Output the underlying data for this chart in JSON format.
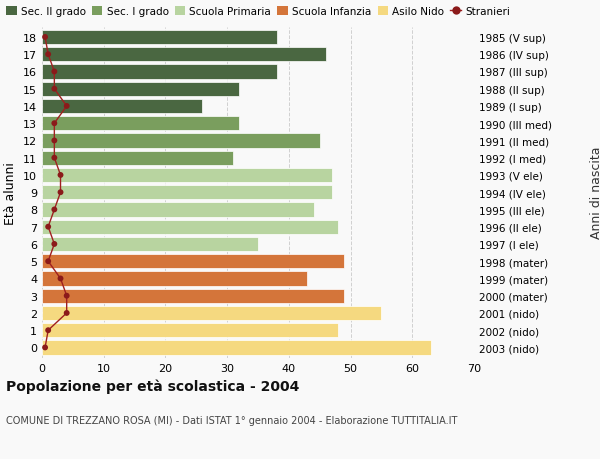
{
  "ages": [
    18,
    17,
    16,
    15,
    14,
    13,
    12,
    11,
    10,
    9,
    8,
    7,
    6,
    5,
    4,
    3,
    2,
    1,
    0
  ],
  "years": [
    "1985 (V sup)",
    "1986 (IV sup)",
    "1987 (III sup)",
    "1988 (II sup)",
    "1989 (I sup)",
    "1990 (III med)",
    "1991 (II med)",
    "1992 (I med)",
    "1993 (V ele)",
    "1994 (IV ele)",
    "1995 (III ele)",
    "1996 (II ele)",
    "1997 (I ele)",
    "1998 (mater)",
    "1999 (mater)",
    "2000 (mater)",
    "2001 (nido)",
    "2002 (nido)",
    "2003 (nido)"
  ],
  "bar_values": [
    38,
    46,
    38,
    32,
    26,
    32,
    45,
    31,
    47,
    47,
    44,
    48,
    35,
    49,
    43,
    49,
    55,
    48,
    63
  ],
  "stranieri_values": [
    0.5,
    1,
    2,
    2,
    4,
    2,
    2,
    2,
    3,
    3,
    2,
    1,
    2,
    1,
    3,
    4,
    4,
    1,
    0.5
  ],
  "bar_colors": [
    "#4a6741",
    "#4a6741",
    "#4a6741",
    "#4a6741",
    "#4a6741",
    "#7a9e5e",
    "#7a9e5e",
    "#7a9e5e",
    "#b8d4a0",
    "#b8d4a0",
    "#b8d4a0",
    "#b8d4a0",
    "#b8d4a0",
    "#d4753a",
    "#d4753a",
    "#d4753a",
    "#f5d980",
    "#f5d980",
    "#f5d980"
  ],
  "legend_labels": [
    "Sec. II grado",
    "Sec. I grado",
    "Scuola Primaria",
    "Scuola Infanzia",
    "Asilo Nido",
    "Stranieri"
  ],
  "legend_colors": [
    "#4a6741",
    "#7a9e5e",
    "#b8d4a0",
    "#d4753a",
    "#f5d980",
    "#a02020"
  ],
  "ylabel": "Età alunni",
  "right_ylabel": "Anni di nascita",
  "title1": "Popolazione per età scolastica - 2004",
  "title2": "COMUNE DI TREZZANO ROSA (MI) - Dati ISTAT 1° gennaio 2004 - Elaborazione TUTTITALIA.IT",
  "xlim": [
    0,
    70
  ],
  "xticks": [
    0,
    10,
    20,
    30,
    40,
    50,
    60,
    70
  ],
  "bar_height": 0.82,
  "bg_color": "#f9f9f9",
  "grid_color": "#cccccc",
  "stranieri_color": "#a02020",
  "stranieri_marker_color": "#8b1a1a"
}
